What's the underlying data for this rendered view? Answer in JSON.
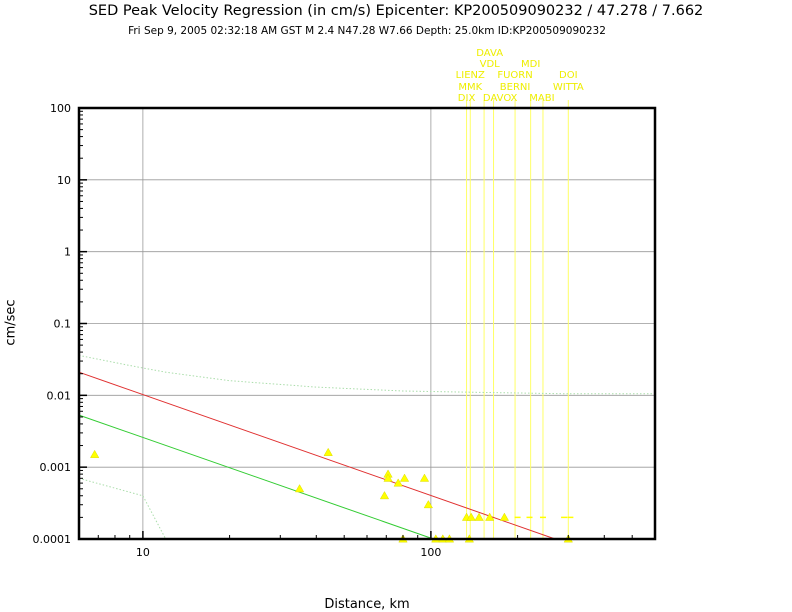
{
  "title": "SED Peak Velocity Regression (in cm/s) Epicenter: KP200509090232 / 47.278 / 7.662",
  "subtitle": "Fri Sep  9, 2005 02:32:18 AM GST   M 2.4   N47.28 W7.66   Depth: 25.0km   ID:KP200509090232",
  "chart_data": {
    "type": "scatter",
    "xlabel": "Distance, km",
    "ylabel": "cm/sec",
    "xscale": "log",
    "yscale": "log",
    "xlim": [
      6,
      600
    ],
    "ylim": [
      0.0001,
      100
    ],
    "x_ticks": [
      10,
      100
    ],
    "x_tick_labels": [
      "10",
      "100"
    ],
    "y_ticks": [
      0.0001,
      0.001,
      0.01,
      0.1,
      1,
      10,
      100
    ],
    "y_tick_labels": [
      "0.0001",
      "0.001",
      "0.01",
      "0.1",
      "1",
      "10",
      "100"
    ],
    "grid": true,
    "colors": {
      "regression": "#e03030",
      "band": "#33cc33",
      "points": "#ffff00",
      "stations": "#ffff66",
      "text": "#000000"
    },
    "lines": [
      {
        "x": [
          6,
          270
        ],
        "y": [
          0.021,
          0.0001
        ],
        "color": "#e03030",
        "style": "solid"
      },
      {
        "x": [
          6,
          102
        ],
        "y": [
          0.0053,
          0.0001
        ],
        "color": "#33cc33",
        "style": "solid"
      },
      {
        "x": [
          6,
          9,
          12,
          20,
          40,
          80,
          150,
          300,
          600
        ],
        "y": [
          0.036,
          0.026,
          0.021,
          0.016,
          0.013,
          0.0115,
          0.011,
          0.0105,
          0.0105
        ],
        "color": "#aaddaa",
        "style": "dotted"
      },
      {
        "x": [
          6,
          10,
          12
        ],
        "y": [
          0.0007,
          0.0004,
          0.0001
        ],
        "color": "#aaddaa",
        "style": "dotted"
      }
    ],
    "points": [
      {
        "x": 6.8,
        "y": 0.0015
      },
      {
        "x": 35,
        "y": 0.0005
      },
      {
        "x": 44,
        "y": 0.0016
      },
      {
        "x": 69,
        "y": 0.0004
      },
      {
        "x": 71,
        "y": 0.0008
      },
      {
        "x": 71,
        "y": 0.0007
      },
      {
        "x": 77,
        "y": 0.0006
      },
      {
        "x": 81,
        "y": 0.0007
      },
      {
        "x": 95,
        "y": 0.0007
      },
      {
        "x": 98,
        "y": 0.0003
      },
      {
        "x": 133,
        "y": 0.0002
      },
      {
        "x": 138,
        "y": 0.0002
      },
      {
        "x": 147,
        "y": 0.0002
      },
      {
        "x": 160,
        "y": 0.0002
      },
      {
        "x": 180,
        "y": 0.0002
      },
      {
        "x": 80,
        "y": 0.0001
      },
      {
        "x": 104,
        "y": 0.0001
      },
      {
        "x": 110,
        "y": 0.0001
      },
      {
        "x": 116,
        "y": 0.0001
      },
      {
        "x": 136,
        "y": 0.0001
      },
      {
        "x": 300,
        "y": 0.0001
      }
    ],
    "nondetections": [
      {
        "x": 200,
        "y": 0.0002
      },
      {
        "x": 220,
        "y": 0.0002
      },
      {
        "x": 245,
        "y": 0.0002
      },
      {
        "x": 290,
        "y": 0.0002
      },
      {
        "x": 305,
        "y": 0.0002
      }
    ],
    "stations": [
      {
        "name": "DAVA",
        "x": 160,
        "row": 1
      },
      {
        "name": "VDL",
        "x": 160,
        "row": 2
      },
      {
        "name": "LIENZ",
        "x": 137,
        "row": 3
      },
      {
        "name": "FUORN",
        "x": 196,
        "row": 3
      },
      {
        "name": "MDI",
        "x": 222,
        "row": 2
      },
      {
        "name": "DOI",
        "x": 300,
        "row": 3
      },
      {
        "name": "MMK",
        "x": 137,
        "row": 4
      },
      {
        "name": "BERNI",
        "x": 196,
        "row": 4
      },
      {
        "name": "WITTA",
        "x": 300,
        "row": 4
      },
      {
        "name": "DIX",
        "x": 133,
        "row": 5
      },
      {
        "name": "DAVOX",
        "x": 174,
        "row": 5
      },
      {
        "name": "MABI",
        "x": 243,
        "row": 5
      }
    ],
    "station_lines_x": [
      133,
      137,
      153,
      165,
      196,
      222,
      245,
      300
    ]
  }
}
